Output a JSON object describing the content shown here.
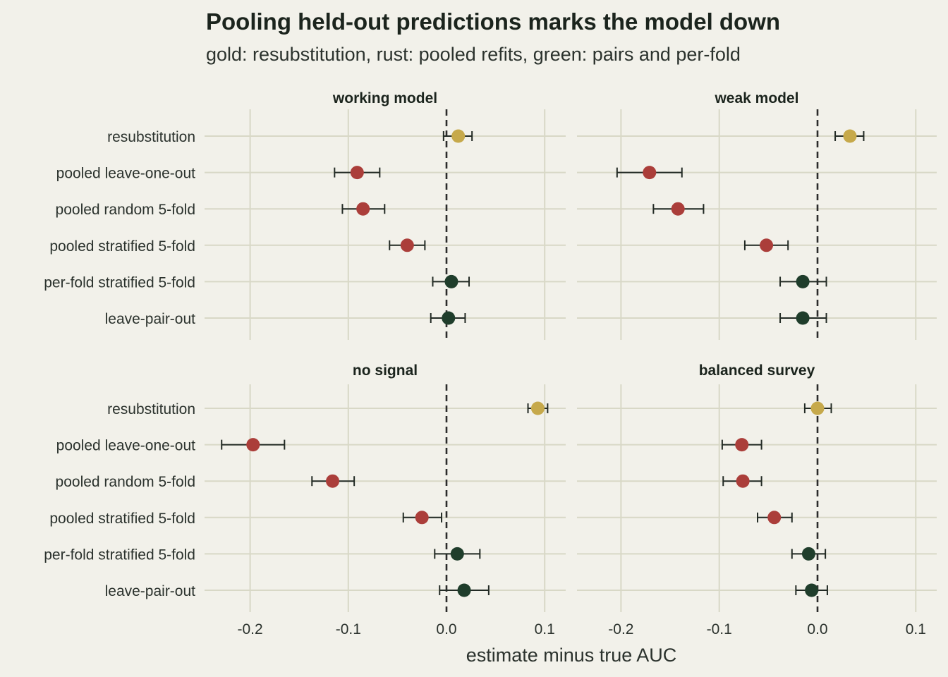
{
  "title": "Pooling held-out predictions marks the model down",
  "subtitle": "gold: resubstitution, rust: pooled refits, green: pairs and per-fold",
  "colors": {
    "background": "#f2f1ea",
    "grid": "#d8d8c6",
    "gold": "#c6a94b",
    "rust": "#ab3e3a",
    "green": "#1f3d2b",
    "errorbar": "#222a24",
    "zero_line": "#2b2b2b"
  },
  "chart_data": {
    "type": "scatter",
    "mark": "point with horizontal error bars",
    "xlabel": "estimate minus true AUC",
    "xlim": [
      -0.25,
      0.12
    ],
    "xticks": [
      -0.2,
      -0.1,
      0.0,
      0.1
    ],
    "xtick_labels": [
      "-0.2",
      "-0.1",
      "0.0",
      "0.1"
    ],
    "reference_line": {
      "x": 0,
      "style": "dashed"
    },
    "categories": [
      "resubstitution",
      "pooled leave-one-out",
      "pooled random 5-fold",
      "pooled stratified 5-fold",
      "per-fold stratified 5-fold",
      "leave-pair-out"
    ],
    "category_groups": [
      "gold",
      "rust",
      "rust",
      "rust",
      "green",
      "green"
    ],
    "grid": true,
    "legend": "none",
    "panels": [
      {
        "name": "working model",
        "estimates": [
          0.012,
          -0.091,
          -0.085,
          -0.04,
          0.005,
          0.002
        ],
        "lower": [
          -0.003,
          -0.114,
          -0.106,
          -0.058,
          -0.014,
          -0.016
        ],
        "upper": [
          0.026,
          -0.068,
          -0.063,
          -0.022,
          0.023,
          0.019
        ]
      },
      {
        "name": "weak model",
        "estimates": [
          0.033,
          -0.171,
          -0.142,
          -0.052,
          -0.015,
          -0.015
        ],
        "lower": [
          0.018,
          -0.204,
          -0.167,
          -0.074,
          -0.038,
          -0.038
        ],
        "upper": [
          0.047,
          -0.138,
          -0.116,
          -0.03,
          0.009,
          0.009
        ]
      },
      {
        "name": "no signal",
        "estimates": [
          0.093,
          -0.197,
          -0.116,
          -0.025,
          0.011,
          0.018
        ],
        "lower": [
          0.083,
          -0.229,
          -0.137,
          -0.044,
          -0.012,
          -0.007
        ],
        "upper": [
          0.103,
          -0.165,
          -0.094,
          -0.005,
          0.034,
          0.043
        ]
      },
      {
        "name": "balanced survey",
        "estimates": [
          0.0,
          -0.077,
          -0.076,
          -0.044,
          -0.009,
          -0.006
        ],
        "lower": [
          -0.013,
          -0.097,
          -0.096,
          -0.061,
          -0.026,
          -0.022
        ],
        "upper": [
          0.014,
          -0.057,
          -0.057,
          -0.026,
          0.008,
          0.01
        ]
      }
    ]
  }
}
